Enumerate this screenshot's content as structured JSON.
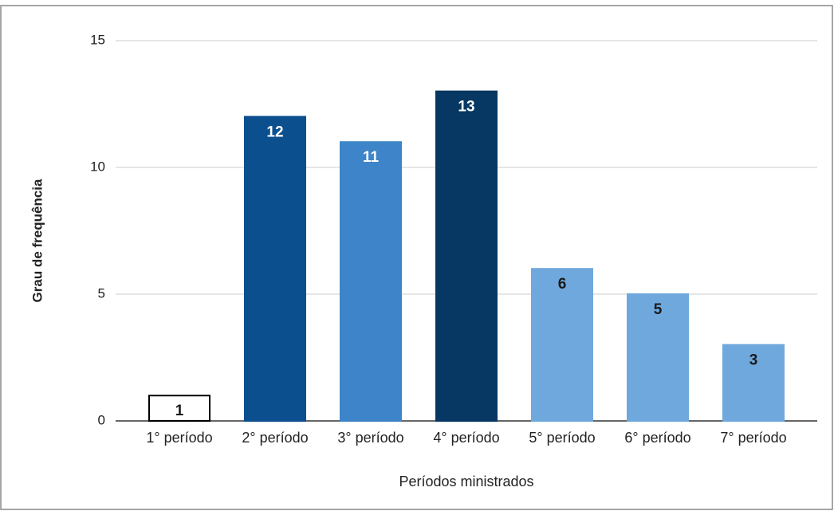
{
  "chart_data": {
    "type": "bar",
    "xlabel": "Períodos ministrados",
    "ylabel": "Grau de frequência",
    "categories": [
      "1° período",
      "2° período",
      "3° período",
      "4° período",
      "5° período",
      "6° período",
      "7° período"
    ],
    "values": [
      1,
      12,
      11,
      13,
      6,
      5,
      3
    ],
    "colors": [
      "#ffffff",
      "#0b4f8f",
      "#3d85c8",
      "#073763",
      "#6fa8dc",
      "#6fa8dc",
      "#6fa8dc"
    ],
    "edge_colors": [
      "#000000",
      "#0b4f8f",
      "#3d85c8",
      "#073763",
      "#6fa8dc",
      "#6fa8dc",
      "#6fa8dc"
    ],
    "label_colors": [
      "#1a1a1a",
      "#ffffff",
      "#ffffff",
      "#ffffff",
      "#1a1a1a",
      "#1a1a1a",
      "#1a1a1a"
    ],
    "ylim": [
      0,
      15
    ],
    "yticks": [
      0,
      5,
      10,
      15
    ],
    "grid": true
  }
}
